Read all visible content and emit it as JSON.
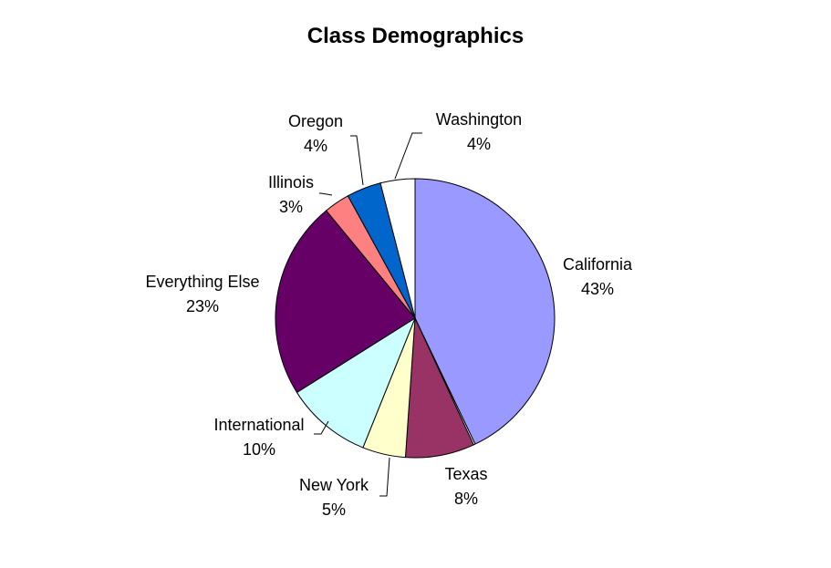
{
  "chart_data": {
    "type": "pie",
    "title": "Class Demographics",
    "start_angle_deg": 0,
    "direction": "clockwise",
    "slices": [
      {
        "label": "California",
        "value": 43,
        "display": "43%",
        "color": "#9999ff"
      },
      {
        "label": "",
        "value": 0.2,
        "display": "",
        "color": "#ffffff"
      },
      {
        "label": "Texas",
        "value": 8,
        "display": "8%",
        "color": "#993366"
      },
      {
        "label": "New York",
        "value": 5,
        "display": "5%",
        "color": "#ffffcc"
      },
      {
        "label": "International",
        "value": 10,
        "display": "10%",
        "color": "#ccffff"
      },
      {
        "label": "Everything Else",
        "value": 23,
        "display": "23%",
        "color": "#660066"
      },
      {
        "label": "Illinois",
        "value": 3,
        "display": "3%",
        "color": "#ff8080"
      },
      {
        "label": "Oregon",
        "value": 4,
        "display": "4%",
        "color": "#0066cc"
      },
      {
        "label": "Washington",
        "value": 4,
        "display": "4%",
        "color": "#ffffff"
      }
    ],
    "legend": "none",
    "data_labels": "category name and percentage with leader lines"
  },
  "labels": {
    "california": {
      "name": "California",
      "pct": "43%"
    },
    "texas": {
      "name": "Texas",
      "pct": "8%"
    },
    "new_york": {
      "name": "New York",
      "pct": "5%"
    },
    "international": {
      "name": "International",
      "pct": "10%"
    },
    "everything_else": {
      "name": "Everything Else",
      "pct": "23%"
    },
    "illinois": {
      "name": "Illinois",
      "pct": "3%"
    },
    "oregon": {
      "name": "Oregon",
      "pct": "4%"
    },
    "washington": {
      "name": "Washington",
      "pct": "4%"
    }
  }
}
